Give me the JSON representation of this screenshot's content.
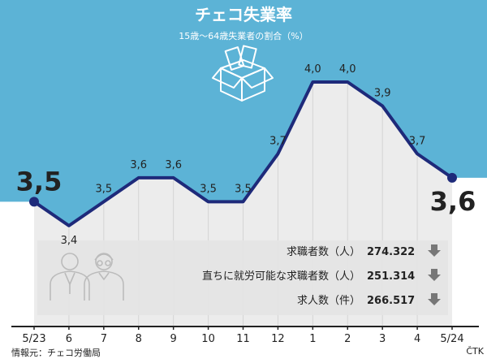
{
  "colors": {
    "sky": "#5cb3d6",
    "line": "#1e2a7a",
    "panel": "#e4e4e4",
    "area": "#ececec",
    "arrow": "#777777"
  },
  "header": {
    "title": "チェコ失業率",
    "subtitle": "15歳〜64歳失業者の割合（%）",
    "icon": "open-box-icon"
  },
  "chart_data": {
    "type": "line",
    "title": "チェコ失業率",
    "subtitle": "15歳〜64歳失業者の割合（%）",
    "categories": [
      "5/23",
      "6",
      "7",
      "8",
      "9",
      "10",
      "11",
      "12",
      "1",
      "2",
      "3",
      "4",
      "5/24"
    ],
    "value_labels": [
      "3,5",
      "3,4",
      "3,5",
      "3,6",
      "3,6",
      "3,5",
      "3,5",
      "3,7",
      "4,0",
      "4,0",
      "3,9",
      "3,7",
      "3,6"
    ],
    "series": [
      {
        "values": [
          3.5,
          3.4,
          3.5,
          3.6,
          3.6,
          3.5,
          3.5,
          3.7,
          4.0,
          4.0,
          3.9,
          3.7,
          3.6
        ]
      }
    ],
    "ylim": [
      2.85,
      4.2
    ],
    "grid": true
  },
  "stats_panel": {
    "icon": "people-icon",
    "rows": [
      {
        "label": "求職者数（人）",
        "value": "274.322",
        "icon": "arrow-down-icon"
      },
      {
        "label": "直ちに就労可能な求職者数（人）",
        "value": "251.314",
        "icon": "arrow-down-icon"
      },
      {
        "label": "求人数（件）",
        "value": "266.517",
        "icon": "arrow-down-icon"
      }
    ]
  },
  "footer": {
    "source": "情報元：チェコ労働局",
    "credit": "ČTK"
  }
}
